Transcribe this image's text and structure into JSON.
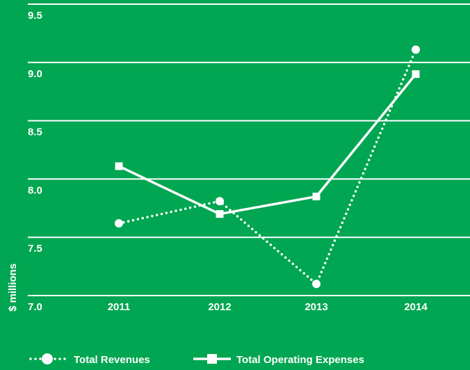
{
  "chart_data": {
    "type": "line",
    "ylabel": "$ millions",
    "categories": [
      "2011",
      "2012",
      "2013",
      "2014"
    ],
    "series": [
      {
        "name": "Total Revenues",
        "color": "#ffffff",
        "style": "dotted",
        "marker": "circle",
        "values": [
          7.62,
          7.81,
          7.1,
          9.11
        ]
      },
      {
        "name": "Total Operating Expenses",
        "color": "#ffffff",
        "style": "solid",
        "marker": "square",
        "values": [
          8.11,
          7.7,
          7.85,
          8.9
        ]
      }
    ],
    "ylim": [
      7,
      9.5
    ],
    "yticks": [
      {
        "value": 7,
        "label": "7.0"
      },
      7.5,
      {
        "value": 8,
        "label": "8.0"
      },
      8.5,
      {
        "value": 9,
        "label": "9.0"
      },
      9.5
    ],
    "grid": true,
    "legend": "bottom"
  }
}
